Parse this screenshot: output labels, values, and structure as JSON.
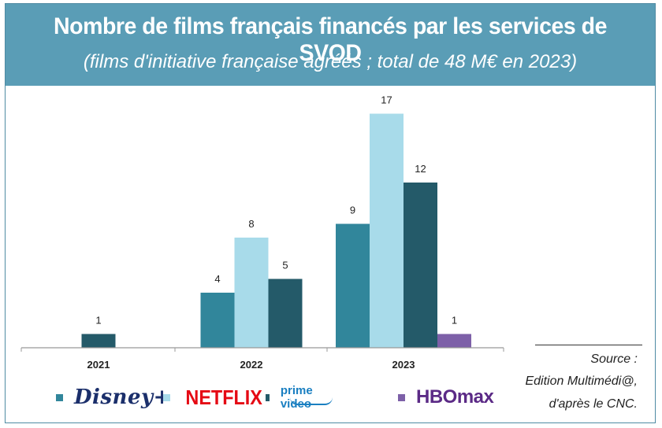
{
  "header": {
    "title": "Nombre de films français financés par les services de SVOD",
    "subtitle": "(films d'initiative française agréés ; total de 48 M€ en 2023)"
  },
  "chart_data": {
    "type": "bar",
    "title": "Nombre de films français financés par les services de SVOD",
    "subtitle": "(films d'initiative française agréés ; total de 48 M€ en 2023)",
    "categories": [
      "2021",
      "2022",
      "2023"
    ],
    "series": [
      {
        "name": "Disney+",
        "color": "#31869b",
        "values": [
          null,
          4,
          9
        ]
      },
      {
        "name": "Netflix",
        "color": "#a8dbea",
        "values": [
          null,
          8,
          17
        ]
      },
      {
        "name": "Prime Video",
        "color": "#245a69",
        "values": [
          1,
          5,
          12
        ]
      },
      {
        "name": "HBO Max",
        "color": "#7d60a8",
        "values": [
          null,
          null,
          1
        ]
      }
    ],
    "xlabel": "",
    "ylabel": "",
    "ylim": [
      0,
      18
    ],
    "grid": false,
    "legend_position": "bottom"
  },
  "legend": {
    "disney_logo": "Disney+",
    "netflix_logo": "NETFLIX",
    "prime_logo": "prime video",
    "hbo_logo": "HBOmax"
  },
  "source": {
    "line1": "Source :",
    "line2": "Edition Multimédi@,",
    "line3": "d'après le CNC."
  }
}
